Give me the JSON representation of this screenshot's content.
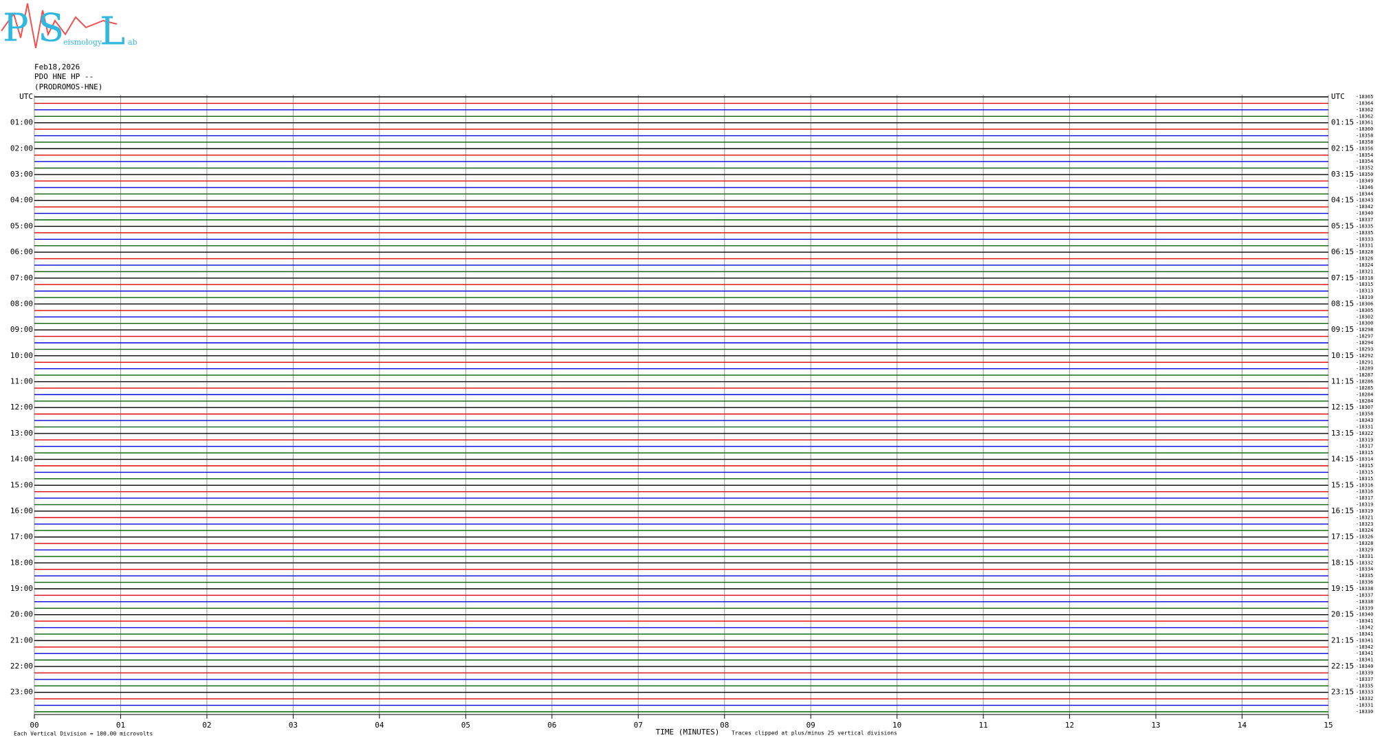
{
  "logo": {
    "letters": [
      "P",
      "S",
      "L"
    ],
    "words": [
      "eismology",
      "ab"
    ]
  },
  "chart_data": {
    "type": "helicorder",
    "header": [
      "Feb18,2026",
      "PDO HNE HP --",
      "(PRODROMOS-HNE)"
    ],
    "xlabel": "TIME (MINUTES)",
    "footer_left": "Each Vertical Division =  100.00 microvolts",
    "footer_right": "Traces clipped at plus/minus 25 vertical divisions",
    "xlim": [
      0,
      15
    ],
    "xticks": [
      {
        "value": 0,
        "label": "00"
      },
      {
        "value": 1,
        "label": "01"
      },
      {
        "value": 2,
        "label": "02"
      },
      {
        "value": 3,
        "label": "03"
      },
      {
        "value": 4,
        "label": "04"
      },
      {
        "value": 5,
        "label": "05"
      },
      {
        "value": 6,
        "label": "06"
      },
      {
        "value": 7,
        "label": "07"
      },
      {
        "value": 8,
        "label": "08"
      },
      {
        "value": 9,
        "label": "09"
      },
      {
        "value": 10,
        "label": "10"
      },
      {
        "value": 11,
        "label": "11"
      },
      {
        "value": 12,
        "label": "12"
      },
      {
        "value": 13,
        "label": "13"
      },
      {
        "value": 14,
        "label": "14"
      },
      {
        "value": 15,
        "label": "15"
      }
    ],
    "grid": true,
    "trace_colors": [
      "#000000",
      "#e00000",
      "#0000e0",
      "#006000"
    ],
    "left_labels": [
      "UTC",
      "01:00",
      "02:00",
      "03:00",
      "04:00",
      "05:00",
      "06:00",
      "07:00",
      "08:00",
      "09:00",
      "10:00",
      "11:00",
      "12:00",
      "13:00",
      "14:00",
      "15:00",
      "16:00",
      "17:00",
      "18:00",
      "19:00",
      "20:00",
      "21:00",
      "22:00",
      "23:00"
    ],
    "right_labels": [
      "UTC",
      "01:15",
      "02:15",
      "03:15",
      "04:15",
      "05:15",
      "06:15",
      "07:15",
      "08:15",
      "09:15",
      "10:15",
      "11:15",
      "12:15",
      "13:15",
      "14:15",
      "15:15",
      "16:15",
      "17:15",
      "18:15",
      "19:15",
      "20:15",
      "21:15",
      "22:15",
      "23:15"
    ],
    "trace_offsets": [
      -18365,
      -18364,
      -18362,
      -18362,
      -18361,
      -18360,
      -18358,
      -18358,
      -18356,
      -18354,
      -18354,
      -18352,
      -18350,
      -18349,
      -18346,
      -18344,
      -18343,
      -18342,
      -18340,
      -18337,
      -18335,
      -18335,
      -18333,
      -18331,
      -18328,
      -18326,
      -18324,
      -18321,
      -18318,
      -18315,
      -18313,
      -18310,
      -18306,
      -18305,
      -18302,
      -18300,
      -18298,
      -18297,
      -18294,
      -18293,
      -18292,
      -18291,
      -18289,
      -18287,
      -18286,
      -18285,
      -18284,
      -18284,
      -18307,
      -18358,
      -18343,
      -18331,
      -18322,
      -18319,
      -18317,
      -18315,
      -18314,
      -18315,
      -18315,
      -18315,
      -18316,
      -18316,
      -18317,
      -18319,
      -18319,
      -18321,
      -18323,
      -18324,
      -18326,
      -18328,
      -18329,
      -18331,
      -18332,
      -18334,
      -18335,
      -18336,
      -18338,
      -18337,
      -18338,
      -18339,
      -18340,
      -18341,
      -18342,
      -18341,
      -18341,
      -18342,
      -18341,
      -18341,
      -18340,
      -18339,
      -18337,
      -18335,
      -18333,
      -18332,
      -18331,
      -18330
    ]
  }
}
